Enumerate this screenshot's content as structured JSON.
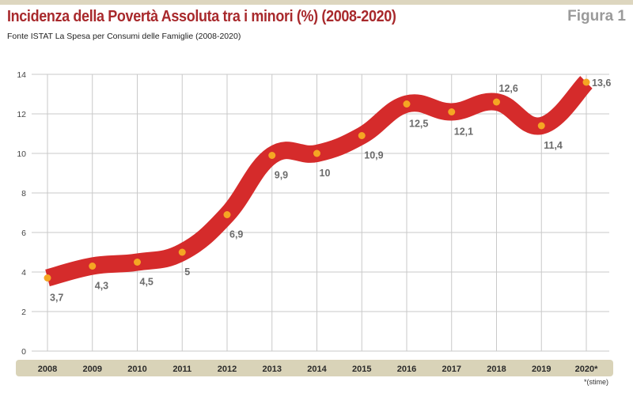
{
  "header": {
    "title": "Incidenza della Povertà Assoluta tra i minori (%) (2008-2020)",
    "figure_label": "Figura 1",
    "source": "Fonte ISTAT La Spesa per Consumi delle Famiglie (2008-2020)",
    "note": "*(stime)"
  },
  "colors": {
    "title": "#a8292c",
    "band": "#d52b2b",
    "marker": "#f5a623",
    "axis_bar": "#d9d3b8",
    "grid": "#c9c9c9"
  },
  "chart_data": {
    "type": "line",
    "title": "Incidenza della Povertà Assoluta tra i minori (%) (2008-2020)",
    "xlabel": "",
    "ylabel": "",
    "categories": [
      "2008",
      "2009",
      "2010",
      "2011",
      "2012",
      "2013",
      "2014",
      "2015",
      "2016",
      "2017",
      "2018",
      "2019",
      "2020*"
    ],
    "values": [
      3.7,
      4.3,
      4.5,
      5,
      6.9,
      9.9,
      10,
      10.9,
      12.5,
      12.1,
      12.6,
      11.4,
      13.6
    ],
    "value_labels": [
      "3,7",
      "4,3",
      "4,5",
      "5",
      "6,9",
      "9,9",
      "10",
      "10,9",
      "12,5",
      "12,1",
      "12,6",
      "11,4",
      "13,6"
    ],
    "label_position": [
      "below",
      "below",
      "below",
      "below",
      "below",
      "below",
      "below",
      "below",
      "below",
      "below",
      "above",
      "below",
      "right"
    ],
    "ylim": [
      0,
      14
    ],
    "yticks": [
      0,
      2,
      4,
      6,
      8,
      10,
      12,
      14
    ],
    "grid": true,
    "legend": "none"
  }
}
